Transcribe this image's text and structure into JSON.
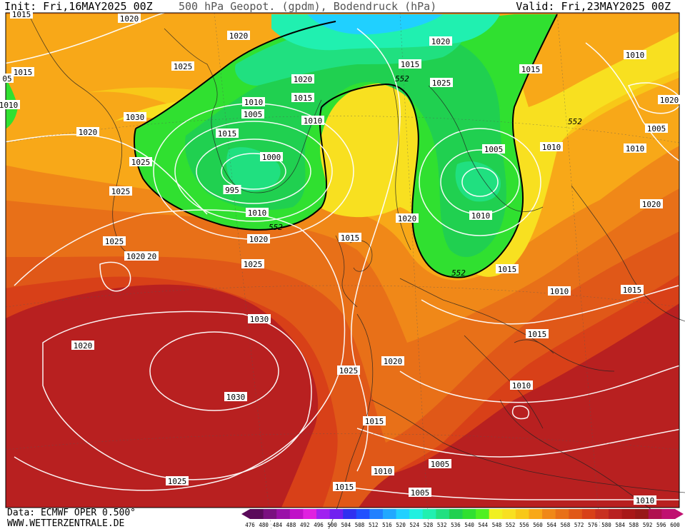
{
  "header": {
    "init": "Init: Fri,16MAY2025 00Z",
    "title": "500 hPa Geopot. (gpdm), Bodendruck (hPa)",
    "valid": "Valid: Fri,23MAY2025 00Z"
  },
  "footer": {
    "data_source": "Data: ECMWF OPER 0.500°",
    "website": "WWW.WETTERZENTRALE.DE"
  },
  "colorbar": {
    "ticks": [
      "476",
      "480",
      "484",
      "488",
      "492",
      "496",
      "500",
      "504",
      "508",
      "512",
      "516",
      "520",
      "524",
      "528",
      "532",
      "536",
      "540",
      "544",
      "548",
      "552",
      "556",
      "560",
      "564",
      "568",
      "572",
      "576",
      "580",
      "584",
      "588",
      "592",
      "596",
      "600"
    ],
    "colors": [
      "#5a0a5a",
      "#7a1080",
      "#9a10a8",
      "#c010c8",
      "#e020e0",
      "#a020f0",
      "#7020f0",
      "#3030f0",
      "#2050ff",
      "#2080ff",
      "#20a8ff",
      "#20d0ff",
      "#20f0e0",
      "#20f0b0",
      "#20e080",
      "#20d050",
      "#30e030",
      "#50f020",
      "#f0f020",
      "#f8e020",
      "#f8c818",
      "#f8a818",
      "#f08818",
      "#e87018",
      "#e05818",
      "#d84018",
      "#c83020",
      "#b82020",
      "#a81818",
      "#981818",
      "#b01050",
      "#c01070"
    ]
  },
  "isobar_labels": [
    {
      "text": "1015"
    },
    {
      "text": "1020"
    },
    {
      "text": "1020"
    },
    {
      "text": "1025"
    },
    {
      "text": "1015"
    },
    {
      "text": "1030"
    },
    {
      "text": "1020"
    },
    {
      "text": "1025"
    },
    {
      "text": "1025"
    },
    {
      "text": "1025"
    },
    {
      "text": "1020"
    },
    {
      "text": "1010"
    },
    {
      "text": "1005"
    },
    {
      "text": "1015"
    },
    {
      "text": "1000"
    },
    {
      "text": "995"
    },
    {
      "text": "1010"
    },
    {
      "text": "1020"
    },
    {
      "text": "1015"
    },
    {
      "text": "1010"
    },
    {
      "text": "1020"
    },
    {
      "text": "1015"
    },
    {
      "text": "1020"
    },
    {
      "text": "1025"
    },
    {
      "text": "1015"
    },
    {
      "text": "1005"
    },
    {
      "text": "1020"
    },
    {
      "text": "1010"
    },
    {
      "text": "1015"
    },
    {
      "text": "1010"
    },
    {
      "text": "1010"
    },
    {
      "text": "1005"
    },
    {
      "text": "1010"
    },
    {
      "text": "1020"
    },
    {
      "text": "1015"
    },
    {
      "text": "1010"
    },
    {
      "text": "1015"
    },
    {
      "text": "1025"
    },
    {
      "text": "1030"
    },
    {
      "text": "1030"
    },
    {
      "text": "1020"
    },
    {
      "text": "1025"
    },
    {
      "text": "1020"
    },
    {
      "text": "1015"
    },
    {
      "text": "1010"
    },
    {
      "text": "1010"
    },
    {
      "text": "1005"
    },
    {
      "text": "1005"
    },
    {
      "text": "1015"
    },
    {
      "text": "1025"
    },
    {
      "text": "1020"
    },
    {
      "text": "1010"
    },
    {
      "text": "1015"
    },
    {
      "text": "1020"
    },
    {
      "text": "1010"
    },
    {
      "text": "05"
    },
    {
      "text": "2"
    }
  ],
  "geopotential_labels": [
    {
      "text": "552"
    },
    {
      "text": "552"
    },
    {
      "text": "552"
    },
    {
      "text": "552"
    }
  ]
}
